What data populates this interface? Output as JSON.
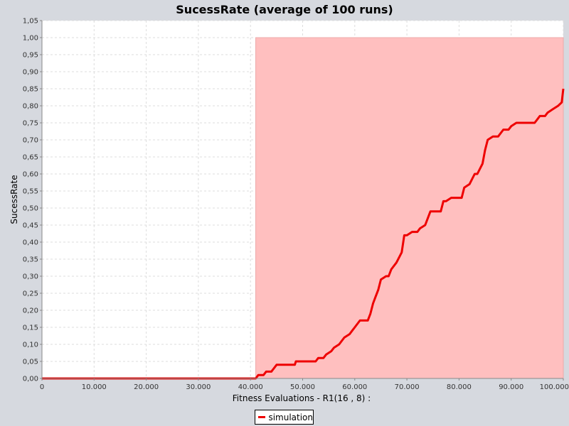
{
  "chart_data": {
    "type": "line",
    "title": "SucessRate (average of 100 runs)",
    "xlabel": "Fitness Evaluations - R1(16 , 8) :",
    "ylabel": "SucessRate",
    "xlim": [
      0,
      100000
    ],
    "ylim": [
      0,
      1.05
    ],
    "grid": true,
    "legend_position": "bottom-center",
    "x_ticks": [
      "0",
      "10.000",
      "20.000",
      "30.000",
      "40.000",
      "50.000",
      "60.000",
      "70.000",
      "80.000",
      "90.000",
      "100.000"
    ],
    "y_ticks": [
      "0,00",
      "0,05",
      "0,10",
      "0,15",
      "0,20",
      "0,25",
      "0,30",
      "0,35",
      "0,40",
      "0,45",
      "0,50",
      "0,55",
      "0,60",
      "0,65",
      "0,70",
      "0,75",
      "0,80",
      "0,85",
      "0,90",
      "0,95",
      "1,00",
      "1,05"
    ],
    "x_tick_values": [
      0,
      10000,
      20000,
      30000,
      40000,
      50000,
      60000,
      70000,
      80000,
      90000,
      100000
    ],
    "y_tick_values": [
      0,
      0.05,
      0.1,
      0.15,
      0.2,
      0.25,
      0.3,
      0.35,
      0.4,
      0.45,
      0.5,
      0.55,
      0.6,
      0.65,
      0.7,
      0.75,
      0.8,
      0.85,
      0.9,
      0.95,
      1.0,
      1.05
    ],
    "shaded_region": {
      "x_start": 41000,
      "x_end": 100000,
      "y_start": 0,
      "y_end": 1.0,
      "color": "#ffbfbf"
    },
    "series": [
      {
        "name": "simulation",
        "color": "#ee0000",
        "points": [
          [
            0,
            0
          ],
          [
            41000,
            0
          ],
          [
            41500,
            0.01
          ],
          [
            42500,
            0.01
          ],
          [
            43000,
            0.02
          ],
          [
            44000,
            0.02
          ],
          [
            45000,
            0.04
          ],
          [
            48500,
            0.04
          ],
          [
            48700,
            0.05
          ],
          [
            52500,
            0.05
          ],
          [
            53000,
            0.06
          ],
          [
            54000,
            0.06
          ],
          [
            54500,
            0.07
          ],
          [
            55500,
            0.08
          ],
          [
            56000,
            0.09
          ],
          [
            57000,
            0.1
          ],
          [
            58000,
            0.12
          ],
          [
            59000,
            0.13
          ],
          [
            59500,
            0.14
          ],
          [
            60000,
            0.15
          ],
          [
            61000,
            0.17
          ],
          [
            62500,
            0.17
          ],
          [
            63000,
            0.19
          ],
          [
            63500,
            0.22
          ],
          [
            64000,
            0.24
          ],
          [
            64500,
            0.26
          ],
          [
            65000,
            0.29
          ],
          [
            66000,
            0.3
          ],
          [
            66500,
            0.3
          ],
          [
            67000,
            0.32
          ],
          [
            68000,
            0.34
          ],
          [
            69000,
            0.37
          ],
          [
            69500,
            0.42
          ],
          [
            70000,
            0.42
          ],
          [
            71000,
            0.43
          ],
          [
            72000,
            0.43
          ],
          [
            72500,
            0.44
          ],
          [
            73500,
            0.45
          ],
          [
            74500,
            0.49
          ],
          [
            76500,
            0.49
          ],
          [
            77000,
            0.52
          ],
          [
            77500,
            0.52
          ],
          [
            78500,
            0.53
          ],
          [
            80500,
            0.53
          ],
          [
            81000,
            0.56
          ],
          [
            82000,
            0.57
          ],
          [
            83000,
            0.6
          ],
          [
            83500,
            0.6
          ],
          [
            84500,
            0.63
          ],
          [
            85000,
            0.67
          ],
          [
            85500,
            0.7
          ],
          [
            86500,
            0.71
          ],
          [
            87500,
            0.71
          ],
          [
            88500,
            0.73
          ],
          [
            89500,
            0.73
          ],
          [
            90000,
            0.74
          ],
          [
            91000,
            0.75
          ],
          [
            94500,
            0.75
          ],
          [
            95000,
            0.76
          ],
          [
            95500,
            0.77
          ],
          [
            96500,
            0.77
          ],
          [
            97000,
            0.78
          ],
          [
            98000,
            0.79
          ],
          [
            99000,
            0.8
          ],
          [
            99700,
            0.81
          ],
          [
            100000,
            0.85
          ]
        ]
      }
    ],
    "background_color": "#ffffff",
    "frame_color": "#d6d9df"
  }
}
